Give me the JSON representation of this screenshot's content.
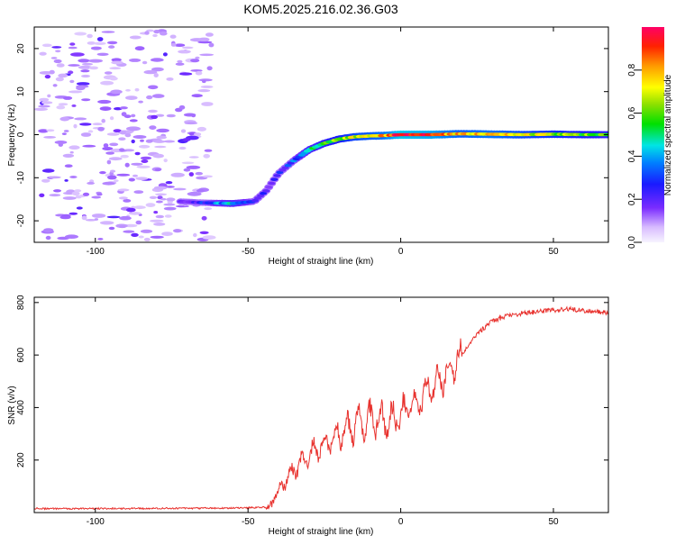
{
  "title": "KOM5.2025.216.02.36.G03",
  "colors": {
    "line": "#e8322e",
    "frame": "#000000"
  },
  "chart_data": [
    {
      "type": "heatmap",
      "xlabel": "Height of straight line (km)",
      "ylabel": "Frequency (Hz)",
      "xlim": [
        -120,
        68
      ],
      "ylim": [
        -25,
        25
      ],
      "x_ticks": [
        -100,
        -50,
        0,
        50
      ],
      "x_tick_labels": [
        "-100",
        "-50",
        "0",
        "50"
      ],
      "y_ticks": [
        -20,
        -10,
        0,
        10,
        20
      ],
      "y_tick_labels": [
        "-20",
        "-10",
        "0",
        "10",
        "20"
      ],
      "colorbar": {
        "label": "Normalized spectral amplitude",
        "range": [
          0,
          1
        ],
        "ticks": [
          0,
          0.2,
          0.4,
          0.6,
          0.8
        ],
        "tick_labels": [
          "0.0",
          "0.2",
          "0.4",
          "0.6",
          "0.8"
        ]
      },
      "ridge": {
        "x": [
          -72,
          -65,
          -55,
          -48,
          -44,
          -40,
          -35,
          -30,
          -25,
          -20,
          -15,
          -10,
          -5,
          0,
          10,
          20,
          30,
          40,
          50,
          60,
          68
        ],
        "freq": [
          -15.5,
          -15.8,
          -16.0,
          -15.5,
          -13.0,
          -9.0,
          -6.0,
          -3.5,
          -2.0,
          -1.0,
          -0.5,
          -0.3,
          -0.2,
          0.0,
          0.0,
          0.2,
          0.1,
          0.0,
          0.1,
          0.0,
          0.0
        ],
        "amplitude": [
          0.15,
          0.25,
          0.45,
          0.3,
          0.15,
          0.2,
          0.3,
          0.45,
          0.55,
          0.6,
          0.7,
          0.75,
          0.8,
          0.95,
          0.9,
          0.75,
          0.8,
          0.7,
          0.65,
          0.6,
          0.55
        ]
      },
      "grid": false
    },
    {
      "type": "line",
      "xlabel": "Height of straight line (km)",
      "ylabel": "SNR (v/v)",
      "xlim": [
        -120,
        68
      ],
      "ylim": [
        0,
        820
      ],
      "x_ticks": [
        -100,
        -50,
        0,
        50
      ],
      "x_tick_labels": [
        "-100",
        "-50",
        "0",
        "50"
      ],
      "y_ticks": [
        200,
        400,
        600,
        800
      ],
      "y_tick_labels": [
        "200",
        "400",
        "600",
        "800"
      ],
      "series": [
        {
          "x": [
            -120,
            -100,
            -80,
            -60,
            -50,
            -44,
            -42,
            -40,
            -38,
            -35,
            -30,
            -25,
            -20,
            -15,
            -10,
            -5,
            0,
            5,
            10,
            15,
            20,
            25,
            30,
            35,
            40,
            45,
            50,
            55,
            60,
            68
          ],
          "values": [
            15,
            15,
            16,
            17,
            18,
            20,
            35,
            80,
            120,
            160,
            220,
            260,
            300,
            330,
            360,
            350,
            370,
            420,
            480,
            530,
            600,
            680,
            730,
            750,
            760,
            765,
            770,
            775,
            770,
            760
          ]
        }
      ],
      "grid": false
    }
  ]
}
